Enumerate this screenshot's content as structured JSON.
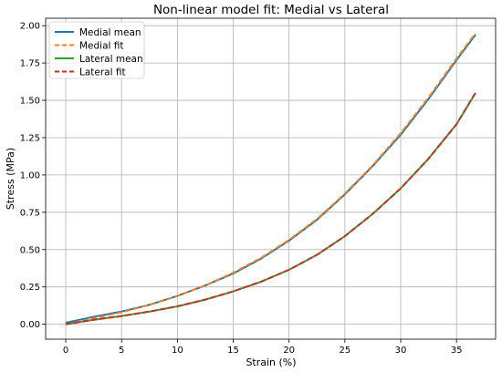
{
  "chart_data": {
    "type": "line",
    "title": "Non-linear model fit: Medial vs Lateral",
    "xlabel": "Strain (%)",
    "ylabel": "Stress (MPa)",
    "xlim": [
      -1.8,
      38.5
    ],
    "ylim": [
      -0.1,
      2.05
    ],
    "xticks": [
      0,
      5,
      10,
      15,
      20,
      25,
      30,
      35
    ],
    "yticks": [
      0.0,
      0.25,
      0.5,
      0.75,
      1.0,
      1.25,
      1.5,
      1.75,
      2.0
    ],
    "xtick_labels": [
      "0",
      "5",
      "10",
      "15",
      "20",
      "25",
      "30",
      "35"
    ],
    "ytick_labels": [
      "0.00",
      "0.25",
      "0.50",
      "0.75",
      "1.00",
      "1.25",
      "1.50",
      "1.75",
      "2.00"
    ],
    "grid": true,
    "legend_position": "top-left",
    "series": [
      {
        "name": "Medial mean",
        "color": "#1f77b4",
        "style": "solid",
        "x": [
          0,
          2.5,
          5,
          7.5,
          10,
          12.5,
          15,
          17.5,
          20,
          22.5,
          25,
          27.5,
          30,
          32.5,
          35,
          36.7
        ],
        "y": [
          0.01,
          0.05,
          0.085,
          0.13,
          0.19,
          0.26,
          0.34,
          0.44,
          0.56,
          0.7,
          0.87,
          1.06,
          1.27,
          1.51,
          1.77,
          1.94
        ]
      },
      {
        "name": "Medial fit",
        "color": "#ff7f0e",
        "style": "dashed",
        "x": [
          0,
          2.5,
          5,
          7.5,
          10,
          12.5,
          15,
          17.5,
          20,
          22.5,
          25,
          27.5,
          30,
          32.5,
          35,
          36.7
        ],
        "y": [
          0.0,
          0.04,
          0.08,
          0.13,
          0.19,
          0.26,
          0.345,
          0.445,
          0.565,
          0.705,
          0.875,
          1.065,
          1.28,
          1.52,
          1.78,
          1.95
        ]
      },
      {
        "name": "Lateral mean",
        "color": "#2ca02c",
        "style": "solid",
        "x": [
          0,
          2.5,
          5,
          7.5,
          10,
          12.5,
          15,
          17.5,
          20,
          22.5,
          25,
          27.5,
          30,
          32.5,
          35,
          36.7
        ],
        "y": [
          0.0,
          0.03,
          0.055,
          0.085,
          0.12,
          0.165,
          0.22,
          0.285,
          0.365,
          0.465,
          0.59,
          0.74,
          0.91,
          1.11,
          1.34,
          1.55
        ]
      },
      {
        "name": "Lateral fit",
        "color": "#d62728",
        "style": "dashed",
        "x": [
          0,
          2.5,
          5,
          7.5,
          10,
          12.5,
          15,
          17.5,
          20,
          22.5,
          25,
          27.5,
          30,
          32.5,
          35,
          36.7
        ],
        "y": [
          0.0,
          0.03,
          0.055,
          0.085,
          0.12,
          0.165,
          0.22,
          0.285,
          0.365,
          0.465,
          0.59,
          0.74,
          0.91,
          1.11,
          1.34,
          1.55
        ]
      }
    ]
  }
}
